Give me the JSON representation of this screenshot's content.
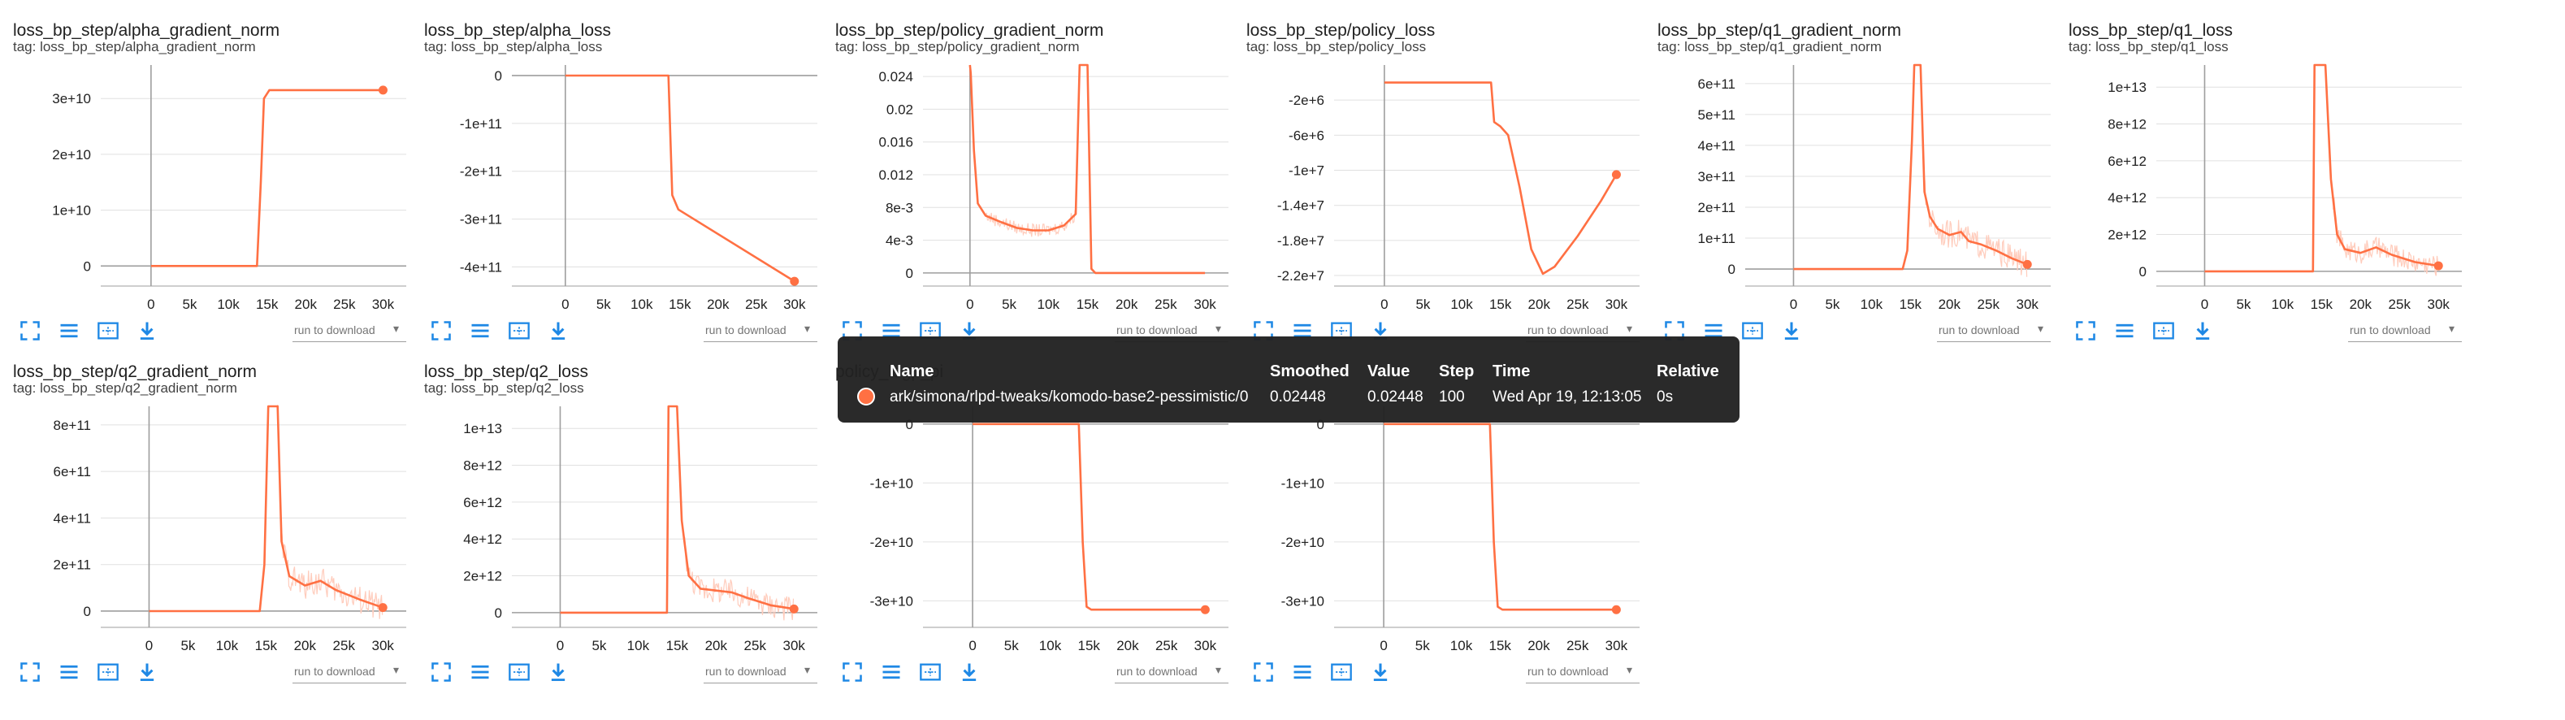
{
  "charts": [
    {
      "title": "loss_bp_step/alpha_gradient_norm",
      "tag": "tag: loss_bp_step/alpha_gradient_norm",
      "yticks": [
        {
          "v": 0,
          "l": "0"
        },
        {
          "v": 10000000000,
          "l": "1e+10"
        },
        {
          "v": 20000000000,
          "l": "2e+10"
        },
        {
          "v": 30000000000,
          "l": "3e+10"
        }
      ],
      "xticks": [
        {
          "v": 0,
          "l": "0"
        },
        {
          "v": 5000,
          "l": "5k"
        },
        {
          "v": 10000,
          "l": "10k"
        },
        {
          "v": 15000,
          "l": "15k"
        },
        {
          "v": 20000,
          "l": "20k"
        },
        {
          "v": 25000,
          "l": "25k"
        },
        {
          "v": 30000,
          "l": "30k"
        }
      ],
      "ylim": [
        -3600000000,
        36000000000
      ],
      "xlim": [
        -6500,
        33000
      ],
      "points": [
        [
          0,
          0
        ],
        [
          13700,
          0
        ],
        [
          14200,
          15000000000
        ],
        [
          14600,
          30000000000
        ],
        [
          15300,
          31500000000
        ],
        [
          30000,
          31500000000
        ]
      ],
      "noise": null,
      "end_dot": true
    },
    {
      "title": "loss_bp_step/alpha_loss",
      "tag": "tag: loss_bp_step/alpha_loss",
      "yticks": [
        {
          "v": 0,
          "l": "0"
        },
        {
          "v": -100000000000,
          "l": "-1e+11"
        },
        {
          "v": -200000000000,
          "l": "-2e+11"
        },
        {
          "v": -300000000000,
          "l": "-3e+11"
        },
        {
          "v": -400000000000,
          "l": "-4e+11"
        }
      ],
      "xticks": [
        {
          "v": 0,
          "l": "0"
        },
        {
          "v": 5000,
          "l": "5k"
        },
        {
          "v": 10000,
          "l": "10k"
        },
        {
          "v": 15000,
          "l": "15k"
        },
        {
          "v": 20000,
          "l": "20k"
        },
        {
          "v": 25000,
          "l": "25k"
        },
        {
          "v": 30000,
          "l": "30k"
        }
      ],
      "ylim": [
        -440000000000,
        22000000000
      ],
      "xlim": [
        -7000,
        33000
      ],
      "points": [
        [
          0,
          0
        ],
        [
          13500,
          0
        ],
        [
          14000,
          -250000000000
        ],
        [
          14800,
          -280000000000
        ],
        [
          30000,
          -430000000000
        ]
      ],
      "noise": null,
      "end_dot": true
    },
    {
      "title": "loss_bp_step/policy_gradient_norm",
      "tag": "tag: loss_bp_step/policy_gradient_norm",
      "yticks": [
        {
          "v": 0,
          "l": "0"
        },
        {
          "v": 0.004,
          "l": "4e-3"
        },
        {
          "v": 0.008,
          "l": "8e-3"
        },
        {
          "v": 0.012,
          "l": "0.012"
        },
        {
          "v": 0.016,
          "l": "0.016"
        },
        {
          "v": 0.02,
          "l": "0.02"
        },
        {
          "v": 0.024,
          "l": "0.024"
        }
      ],
      "xticks": [
        {
          "v": 0,
          "l": "0"
        },
        {
          "v": 5000,
          "l": "5k"
        },
        {
          "v": 10000,
          "l": "10k"
        },
        {
          "v": 15000,
          "l": "15k"
        },
        {
          "v": 20000,
          "l": "20k"
        },
        {
          "v": 25000,
          "l": "25k"
        },
        {
          "v": 30000,
          "l": "30k"
        }
      ],
      "ylim": [
        -0.0016,
        0.0254
      ],
      "xlim": [
        -6000,
        33000
      ],
      "points": [
        [
          0,
          0.0254
        ],
        [
          100,
          0.0244
        ],
        [
          500,
          0.015
        ],
        [
          1000,
          0.0085
        ],
        [
          2000,
          0.007
        ],
        [
          4000,
          0.0062
        ],
        [
          6000,
          0.0055
        ],
        [
          8000,
          0.0052
        ],
        [
          10000,
          0.0052
        ],
        [
          12000,
          0.0058
        ],
        [
          13500,
          0.0072
        ],
        [
          14000,
          0.0254
        ],
        [
          15000,
          0.0254
        ],
        [
          15500,
          0.0005
        ],
        [
          16000,
          0
        ],
        [
          30000,
          0
        ]
      ],
      "noise": [
        2000,
        14000,
        0.0008
      ],
      "end_dot": false
    },
    {
      "title": "loss_bp_step/policy_loss",
      "tag": "tag: loss_bp_step/policy_loss",
      "yticks": [
        {
          "v": -2000000,
          "l": "-2e+6"
        },
        {
          "v": -6000000,
          "l": "-6e+6"
        },
        {
          "v": -10000000,
          "l": "-1e+7"
        },
        {
          "v": -14000000,
          "l": "-1.4e+7"
        },
        {
          "v": -18000000,
          "l": "-1.8e+7"
        },
        {
          "v": -22000000,
          "l": "-2.2e+7"
        }
      ],
      "xticks": [
        {
          "v": 0,
          "l": "0"
        },
        {
          "v": 5000,
          "l": "5k"
        },
        {
          "v": 10000,
          "l": "10k"
        },
        {
          "v": 15000,
          "l": "15k"
        },
        {
          "v": 20000,
          "l": "20k"
        },
        {
          "v": 25000,
          "l": "25k"
        },
        {
          "v": 30000,
          "l": "30k"
        }
      ],
      "ylim": [
        -23200000.0,
        2000000
      ],
      "xlim": [
        -6500,
        33000
      ],
      "points": [
        [
          0,
          0
        ],
        [
          13800,
          0
        ],
        [
          14200,
          -4500000
        ],
        [
          15000,
          -5000000
        ],
        [
          16000,
          -6000000
        ],
        [
          17500,
          -12000000
        ],
        [
          19000,
          -19000000
        ],
        [
          20500,
          -21800000
        ],
        [
          22000,
          -21000000
        ],
        [
          25000,
          -17500000
        ],
        [
          28000,
          -13500000
        ],
        [
          30000,
          -10500000
        ]
      ],
      "noise": null,
      "end_dot": true
    },
    {
      "title": "loss_bp_step/q1_gradient_norm",
      "tag": "tag: loss_bp_step/q1_gradient_norm",
      "yticks": [
        {
          "v": 0,
          "l": "0"
        },
        {
          "v": 100000000000,
          "l": "1e+11"
        },
        {
          "v": 200000000000,
          "l": "2e+11"
        },
        {
          "v": 300000000000,
          "l": "3e+11"
        },
        {
          "v": 400000000000,
          "l": "4e+11"
        },
        {
          "v": 500000000000,
          "l": "5e+11"
        },
        {
          "v": 600000000000,
          "l": "6e+11"
        }
      ],
      "xticks": [
        {
          "v": 0,
          "l": "0"
        },
        {
          "v": 5000,
          "l": "5k"
        },
        {
          "v": 10000,
          "l": "10k"
        },
        {
          "v": 15000,
          "l": "15k"
        },
        {
          "v": 20000,
          "l": "20k"
        },
        {
          "v": 25000,
          "l": "25k"
        },
        {
          "v": 30000,
          "l": "30k"
        }
      ],
      "ylim": [
        -55000000000,
        660000000000
      ],
      "xlim": [
        -6200,
        33000
      ],
      "points": [
        [
          0,
          0
        ],
        [
          14000,
          0
        ],
        [
          14600,
          60000000000
        ],
        [
          15200,
          420000000000
        ],
        [
          15500,
          660000000000
        ],
        [
          16300,
          660000000000
        ],
        [
          16800,
          250000000000
        ],
        [
          17500,
          170000000000
        ],
        [
          18500,
          130000000000
        ],
        [
          20000,
          110000000000
        ],
        [
          21500,
          120000000000
        ],
        [
          22500,
          90000000000
        ],
        [
          24000,
          80000000000
        ],
        [
          26000,
          60000000000
        ],
        [
          28000,
          35000000000
        ],
        [
          30000,
          15000000000
        ]
      ],
      "noise": [
        16500,
        30000,
        45000000000
      ],
      "end_dot": true
    },
    {
      "title": "loss_bp_step/q1_loss",
      "tag": "tag: loss_bp_step/q1_loss",
      "yticks": [
        {
          "v": 0,
          "l": "0"
        },
        {
          "v": 2000000000000,
          "l": "2e+12"
        },
        {
          "v": 4000000000000,
          "l": "4e+12"
        },
        {
          "v": 6000000000000,
          "l": "6e+12"
        },
        {
          "v": 8000000000000,
          "l": "8e+12"
        },
        {
          "v": 10000000000000,
          "l": "1e+13"
        }
      ],
      "xticks": [
        {
          "v": 0,
          "l": "0"
        },
        {
          "v": 5000,
          "l": "5k"
        },
        {
          "v": 10000,
          "l": "10k"
        },
        {
          "v": 15000,
          "l": "15k"
        },
        {
          "v": 20000,
          "l": "20k"
        },
        {
          "v": 25000,
          "l": "25k"
        },
        {
          "v": 30000,
          "l": "30k"
        }
      ],
      "ylim": [
        -800000000000,
        11200000000000
      ],
      "xlim": [
        -6200,
        33000
      ],
      "points": [
        [
          0,
          0
        ],
        [
          13900,
          0
        ],
        [
          14100,
          11200000000000
        ],
        [
          15500,
          11200000000000
        ],
        [
          16200,
          5000000000000
        ],
        [
          17000,
          2000000000000
        ],
        [
          18000,
          1200000000000
        ],
        [
          20000,
          1000000000000
        ],
        [
          22000,
          1300000000000
        ],
        [
          24000,
          900000000000
        ],
        [
          27000,
          500000000000
        ],
        [
          30000,
          300000000000
        ]
      ],
      "noise": [
        16500,
        30000,
        600000000000
      ],
      "end_dot": true
    },
    {
      "title": "loss_bp_step/q2_gradient_norm",
      "tag": "tag: loss_bp_step/q2_gradient_norm",
      "yticks": [
        {
          "v": 0,
          "l": "0"
        },
        {
          "v": 200000000000,
          "l": "2e+11"
        },
        {
          "v": 400000000000,
          "l": "4e+11"
        },
        {
          "v": 600000000000,
          "l": "6e+11"
        },
        {
          "v": 800000000000,
          "l": "8e+11"
        }
      ],
      "xticks": [
        {
          "v": 0,
          "l": "0"
        },
        {
          "v": 5000,
          "l": "5k"
        },
        {
          "v": 10000,
          "l": "10k"
        },
        {
          "v": 15000,
          "l": "15k"
        },
        {
          "v": 20000,
          "l": "20k"
        },
        {
          "v": 25000,
          "l": "25k"
        },
        {
          "v": 30000,
          "l": "30k"
        }
      ],
      "ylim": [
        -70000000000,
        880000000000
      ],
      "xlim": [
        -6200,
        33000
      ],
      "points": [
        [
          0,
          0
        ],
        [
          14200,
          0
        ],
        [
          14800,
          200000000000
        ],
        [
          15300,
          880000000000
        ],
        [
          16500,
          880000000000
        ],
        [
          17000,
          300000000000
        ],
        [
          18000,
          150000000000
        ],
        [
          20000,
          110000000000
        ],
        [
          22000,
          130000000000
        ],
        [
          24000,
          90000000000
        ],
        [
          27000,
          50000000000
        ],
        [
          30000,
          15000000000
        ]
      ],
      "noise": [
        16500,
        30000,
        60000000000
      ],
      "end_dot": true
    },
    {
      "title": "loss_bp_step/q2_loss",
      "tag": "tag: loss_bp_step/q2_loss",
      "yticks": [
        {
          "v": 0,
          "l": "0"
        },
        {
          "v": 2000000000000,
          "l": "2e+12"
        },
        {
          "v": 4000000000000,
          "l": "4e+12"
        },
        {
          "v": 6000000000000,
          "l": "6e+12"
        },
        {
          "v": 8000000000000,
          "l": "8e+12"
        },
        {
          "v": 10000000000000,
          "l": "1e+13"
        }
      ],
      "xticks": [
        {
          "v": 0,
          "l": "0"
        },
        {
          "v": 5000,
          "l": "5k"
        },
        {
          "v": 10000,
          "l": "10k"
        },
        {
          "v": 15000,
          "l": "15k"
        },
        {
          "v": 20000,
          "l": "20k"
        },
        {
          "v": 25000,
          "l": "25k"
        },
        {
          "v": 30000,
          "l": "30k"
        }
      ],
      "ylim": [
        -800000000000,
        11200000000000
      ],
      "xlim": [
        -6200,
        33000
      ],
      "points": [
        [
          0,
          0
        ],
        [
          13700,
          0
        ],
        [
          13900,
          11200000000000
        ],
        [
          15000,
          11200000000000
        ],
        [
          15600,
          5000000000000
        ],
        [
          16500,
          2000000000000
        ],
        [
          18000,
          1300000000000
        ],
        [
          20000,
          1200000000000
        ],
        [
          22000,
          1100000000000
        ],
        [
          24000,
          800000000000
        ],
        [
          27000,
          400000000000
        ],
        [
          30000,
          200000000000
        ]
      ],
      "noise": [
        16000,
        30000,
        700000000000
      ],
      "end_dot": true
    },
    {
      "title": "policy_logp_pi",
      "tag": "",
      "yticks": [
        {
          "v": 0,
          "l": "0"
        },
        {
          "v": -10000000000,
          "l": "-1e+10"
        },
        {
          "v": -20000000000,
          "l": "-2e+10"
        },
        {
          "v": -30000000000,
          "l": "-3e+10"
        }
      ],
      "xticks": [
        {
          "v": 0,
          "l": "0"
        },
        {
          "v": 5000,
          "l": "5k"
        },
        {
          "v": 10000,
          "l": "10k"
        },
        {
          "v": 15000,
          "l": "15k"
        },
        {
          "v": 20000,
          "l": "20k"
        },
        {
          "v": 25000,
          "l": "25k"
        },
        {
          "v": 30000,
          "l": "30k"
        }
      ],
      "ylim": [
        -34500000000,
        3000000000
      ],
      "xlim": [
        -6400,
        33000
      ],
      "points": [
        [
          0,
          0
        ],
        [
          13700,
          0
        ],
        [
          14200,
          -20000000000
        ],
        [
          14700,
          -31000000000
        ],
        [
          15300,
          -31500000000
        ],
        [
          30000,
          -31500000000
        ]
      ],
      "noise": null,
      "end_dot": true
    },
    {
      "title": "",
      "tag": "",
      "yticks": [
        {
          "v": 0,
          "l": "0"
        },
        {
          "v": -10000000000,
          "l": "-1e+10"
        },
        {
          "v": -20000000000,
          "l": "-2e+10"
        },
        {
          "v": -30000000000,
          "l": "-3e+10"
        }
      ],
      "xticks": [
        {
          "v": 0,
          "l": "0"
        },
        {
          "v": 5000,
          "l": "5k"
        },
        {
          "v": 10000,
          "l": "10k"
        },
        {
          "v": 15000,
          "l": "15k"
        },
        {
          "v": 20000,
          "l": "20k"
        },
        {
          "v": 25000,
          "l": "25k"
        },
        {
          "v": 30000,
          "l": "30k"
        }
      ],
      "ylim": [
        -34500000000,
        3000000000
      ],
      "xlim": [
        -6400,
        33000
      ],
      "points": [
        [
          0,
          0
        ],
        [
          13700,
          0
        ],
        [
          14200,
          -20000000000
        ],
        [
          14700,
          -31000000000
        ],
        [
          15300,
          -31500000000
        ],
        [
          30000,
          -31500000000
        ]
      ],
      "noise": null,
      "end_dot": true
    }
  ],
  "toolbar": {
    "run_to_download": "run to download",
    "caret": "▾"
  },
  "icons": {
    "fullscreen": "fullscreen-icon",
    "log_scale": "log-scale-icon",
    "fit_domain": "fit-domain-icon",
    "download": "download-icon"
  },
  "tooltip": {
    "headers": {
      "name": "Name",
      "smoothed": "Smoothed",
      "value": "Value",
      "step": "Step",
      "time": "Time",
      "relative": "Relative"
    },
    "row": {
      "name": "ark/simona/rlpd-tweaks/komodo-base2-pessimistic/0",
      "smoothed": "0.02448",
      "value": "0.02448",
      "step": "100",
      "time": "Wed Apr 19, 12:13:05",
      "relative": "0s"
    }
  },
  "colors": {
    "series": "#ff7043",
    "series_light": "#ffccbc",
    "grid": "#e0e0e0",
    "axis": "#9e9e9e",
    "icon": "#1e88e5"
  }
}
